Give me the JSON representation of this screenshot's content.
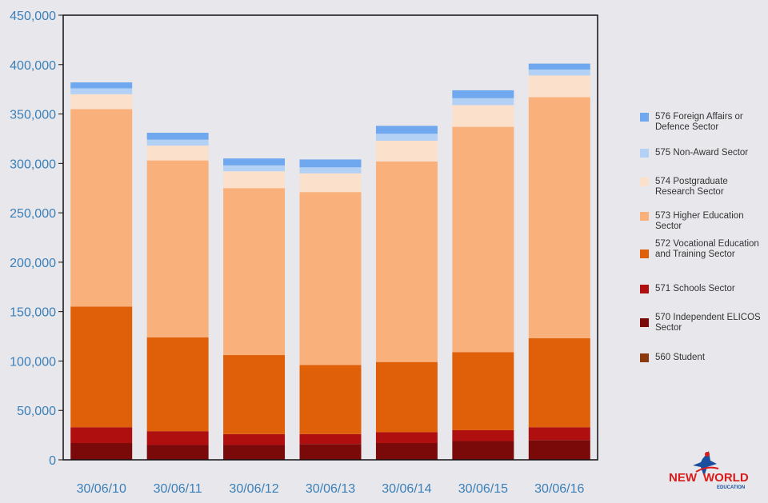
{
  "chart_data": {
    "type": "bar",
    "stacked": true,
    "categories": [
      "30/06/10",
      "30/06/11",
      "30/06/12",
      "30/06/13",
      "30/06/14",
      "30/06/15",
      "30/06/16"
    ],
    "ylim": [
      0,
      450000
    ],
    "yticks": [
      0,
      50000,
      100000,
      150000,
      200000,
      250000,
      300000,
      350000,
      400000,
      450000
    ],
    "ytick_labels": [
      "0",
      "50,000",
      "100,000",
      "150,000",
      "200,000",
      "250,000",
      "300,000",
      "350,000",
      "400,000",
      "450,000"
    ],
    "grid": false,
    "legend_position": "right",
    "series": [
      {
        "name": "560 Student",
        "color": "#8b3a0f",
        "values": [
          0,
          0,
          0,
          0,
          0,
          0,
          0
        ]
      },
      {
        "name": "570 Independent ELICOS Sector",
        "color": "#7a0a0a",
        "values": [
          17000,
          15000,
          15000,
          16000,
          17000,
          19000,
          20000
        ]
      },
      {
        "name": "571 Schools Sector",
        "color": "#b00f0f",
        "values": [
          16000,
          14000,
          11000,
          10000,
          11000,
          11000,
          13000
        ]
      },
      {
        "name": "572 Vocational Education and Training Sector",
        "color": "#e0600a",
        "values": [
          122000,
          95000,
          80000,
          70000,
          71000,
          79000,
          90000
        ]
      },
      {
        "name": "573 Higher Education Sector",
        "color": "#f9b07a",
        "values": [
          200000,
          179000,
          169000,
          175000,
          203000,
          228000,
          244000
        ]
      },
      {
        "name": "574 Postgraduate Research Sector",
        "color": "#fbe0cc",
        "values": [
          15000,
          15000,
          17000,
          19000,
          21000,
          22000,
          22000
        ]
      },
      {
        "name": "575 Non-Award Sector",
        "color": "#b3d1f5",
        "values": [
          6000,
          6000,
          6000,
          6000,
          7000,
          7000,
          6000
        ]
      },
      {
        "name": "576 Foreign Affairs or Defence Sector",
        "color": "#6fa8ee",
        "values": [
          6000,
          7000,
          7000,
          8000,
          8000,
          8000,
          6000
        ]
      }
    ]
  },
  "legend": [
    {
      "label": "576 Foreign Affairs or Defence Sector",
      "color": "#6fa8ee"
    },
    {
      "label": "575 Non-Award Sector",
      "color": "#b3d1f5"
    },
    {
      "label": "574 Postgraduate Research Sector",
      "color": "#fbe0cc"
    },
    {
      "label": "573 Higher Education Sector",
      "color": "#f9b07a"
    },
    {
      "label": "572 Vocational Education and Training Sector",
      "color": "#e0600a"
    },
    {
      "label": "571 Schools Sector",
      "color": "#b00f0f"
    },
    {
      "label": "570 Independent ELICOS Sector",
      "color": "#7a0a0a"
    },
    {
      "label": "560 Student",
      "color": "#8b3a0f"
    }
  ],
  "logo": {
    "text_new": "NEW",
    "text_world": "WORLD",
    "text_education": "EDUCATION"
  }
}
